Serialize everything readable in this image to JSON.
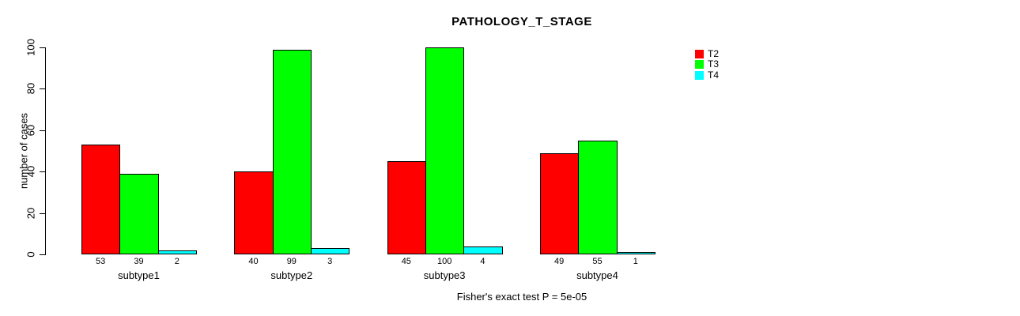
{
  "title": "PATHOLOGY_T_STAGE",
  "footer": "Fisher's exact test P = 5e-05",
  "chart_data": {
    "type": "bar",
    "grouped": true,
    "title": "PATHOLOGY_T_STAGE",
    "xlabel": "",
    "ylabel": "number of cases",
    "categories": [
      "subtype1",
      "subtype2",
      "subtype3",
      "subtype4"
    ],
    "series": [
      {
        "name": "T2",
        "color": "#ff0000",
        "values": [
          53,
          40,
          45,
          49
        ]
      },
      {
        "name": "T3",
        "color": "#00ff00",
        "values": [
          39,
          99,
          100,
          55
        ]
      },
      {
        "name": "T4",
        "color": "#00ffff",
        "values": [
          2,
          3,
          4,
          1
        ]
      }
    ],
    "ylim": [
      0,
      100
    ],
    "yticks": [
      0,
      20,
      40,
      60,
      80,
      100
    ],
    "bar_value_labels": true,
    "grid": false,
    "legend": {
      "position": "top-right",
      "entries": [
        {
          "label": "T2",
          "color": "#ff0000"
        },
        {
          "label": "T3",
          "color": "#00ff00"
        },
        {
          "label": "T4",
          "color": "#00ffff"
        }
      ]
    },
    "annotation": "Fisher's exact test P = 5e-05"
  }
}
